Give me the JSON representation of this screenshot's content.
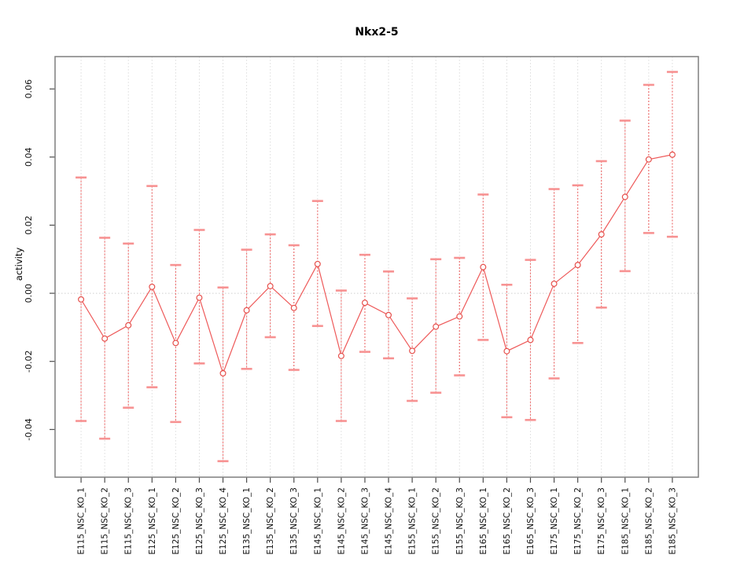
{
  "chart_data": {
    "type": "line",
    "subtype": "means-with-error-bars",
    "title": "Nkx2-5",
    "xlabel": "",
    "ylabel": "activity",
    "ylim": [
      -0.054,
      0.0695
    ],
    "yticks": [
      -0.04,
      -0.02,
      0.0,
      0.02,
      0.04,
      0.06
    ],
    "ytick_labels": [
      "-0.04",
      "-0.02",
      "0.00",
      "0.02",
      "0.04",
      "0.06"
    ],
    "grid": "vertical-dotted-per-category",
    "zero_reference_line": true,
    "legend_position": "none",
    "xticklabel_rotation": 90,
    "categories": [
      "E115_NSC_KO_1",
      "E115_NSC_KO_2",
      "E115_NSC_KO_3",
      "E125_NSC_KO_1",
      "E125_NSC_KO_2",
      "E125_NSC_KO_3",
      "E125_NSC_KO_4",
      "E135_NSC_KO_1",
      "E135_NSC_KO_2",
      "E135_NSC_KO_3",
      "E145_NSC_KO_1",
      "E145_NSC_KO_2",
      "E145_NSC_KO_3",
      "E145_NSC_KO_4",
      "E155_NSC_KO_1",
      "E155_NSC_KO_2",
      "E155_NSC_KO_3",
      "E165_NSC_KO_1",
      "E165_NSC_KO_2",
      "E165_NSC_KO_3",
      "E175_NSC_KO_1",
      "E175_NSC_KO_2",
      "E175_NSC_KO_3",
      "E185_NSC_KO_1",
      "E185_NSC_KO_2",
      "E185_NSC_KO_3"
    ],
    "series": [
      {
        "name": "activity",
        "means": [
          -0.0018,
          -0.0133,
          -0.0094,
          0.0019,
          -0.0146,
          -0.0013,
          -0.0235,
          -0.005,
          0.0021,
          -0.0043,
          0.0086,
          -0.0184,
          -0.0028,
          -0.0064,
          -0.0169,
          -0.0098,
          -0.0068,
          0.0077,
          -0.017,
          -0.0137,
          0.0028,
          0.0083,
          0.0173,
          0.0283,
          0.0393,
          0.0407
        ],
        "upper": [
          0.034,
          0.0163,
          0.0146,
          0.0315,
          0.0083,
          0.0186,
          0.0017,
          0.0128,
          0.0173,
          0.0141,
          0.0271,
          0.0008,
          0.0113,
          0.0064,
          -0.0015,
          0.01,
          0.0104,
          0.029,
          0.0025,
          0.0098,
          0.0306,
          0.0317,
          0.0388,
          0.0507,
          0.0612,
          0.065
        ],
        "lower": [
          -0.0375,
          -0.0427,
          -0.0336,
          -0.0276,
          -0.0378,
          -0.0206,
          -0.0493,
          -0.0222,
          -0.0129,
          -0.0225,
          -0.0096,
          -0.0375,
          -0.0172,
          -0.0191,
          -0.0316,
          -0.0292,
          -0.0241,
          -0.0137,
          -0.0364,
          -0.0372,
          -0.025,
          -0.0146,
          -0.0042,
          0.0065,
          0.0177,
          0.0166
        ]
      }
    ],
    "colors": {
      "series_line": "#ee5a5a",
      "error_cap": "#f79292",
      "marker_stroke": "#e6514d",
      "marker_fill": "#ffffff",
      "gridline": "#dcdcdc",
      "zero_line": "#cfcfcf",
      "frame": "#7f7f7f",
      "tick": "#4d4d4d",
      "text": "#111111"
    }
  }
}
